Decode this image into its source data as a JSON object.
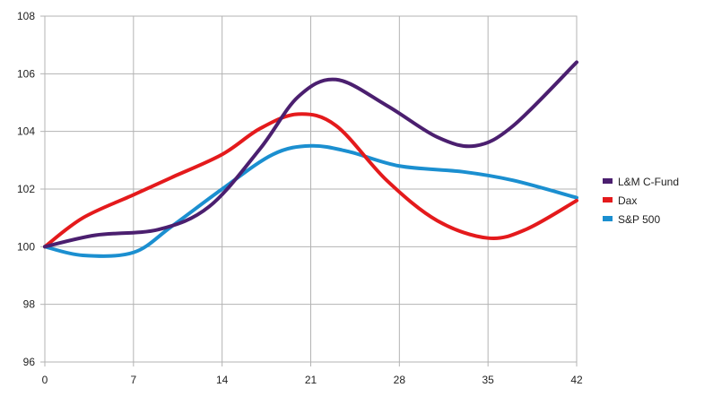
{
  "chart_data": {
    "type": "line",
    "title": "",
    "xlabel": "",
    "ylabel": "",
    "x": [
      0,
      7,
      14,
      21,
      28,
      35,
      42
    ],
    "xlim": [
      0,
      42
    ],
    "ylim": [
      96,
      108
    ],
    "x_ticks": [
      0,
      7,
      14,
      21,
      28,
      35,
      42
    ],
    "y_ticks": [
      96,
      98,
      100,
      102,
      104,
      106,
      108
    ],
    "grid": true,
    "legend_position": "right",
    "smooth": true,
    "series": [
      {
        "name": "L&M C-Fund",
        "color": "#4B1F6F",
        "x": [
          0,
          4,
          9,
          13,
          17,
          20,
          23,
          27,
          31,
          34,
          37,
          42
        ],
        "values": [
          100.0,
          100.4,
          100.6,
          101.4,
          103.4,
          105.2,
          105.8,
          104.9,
          103.8,
          103.5,
          104.2,
          106.4
        ]
      },
      {
        "name": "Dax",
        "color": "#E41A1C",
        "x": [
          0,
          3,
          7,
          10,
          14,
          17,
          20,
          23,
          27,
          31,
          35,
          38,
          42
        ],
        "values": [
          100.0,
          101.0,
          101.8,
          102.4,
          103.2,
          104.1,
          104.6,
          104.2,
          102.3,
          100.9,
          100.3,
          100.6,
          101.6
        ]
      },
      {
        "name": "S&P 500",
        "color": "#1B8FD0",
        "x": [
          0,
          3,
          7,
          10,
          14,
          18,
          21,
          24,
          28,
          33,
          37,
          42
        ],
        "values": [
          100.0,
          99.7,
          99.8,
          100.7,
          102.0,
          103.2,
          103.5,
          103.3,
          102.8,
          102.6,
          102.3,
          101.7
        ]
      }
    ]
  }
}
